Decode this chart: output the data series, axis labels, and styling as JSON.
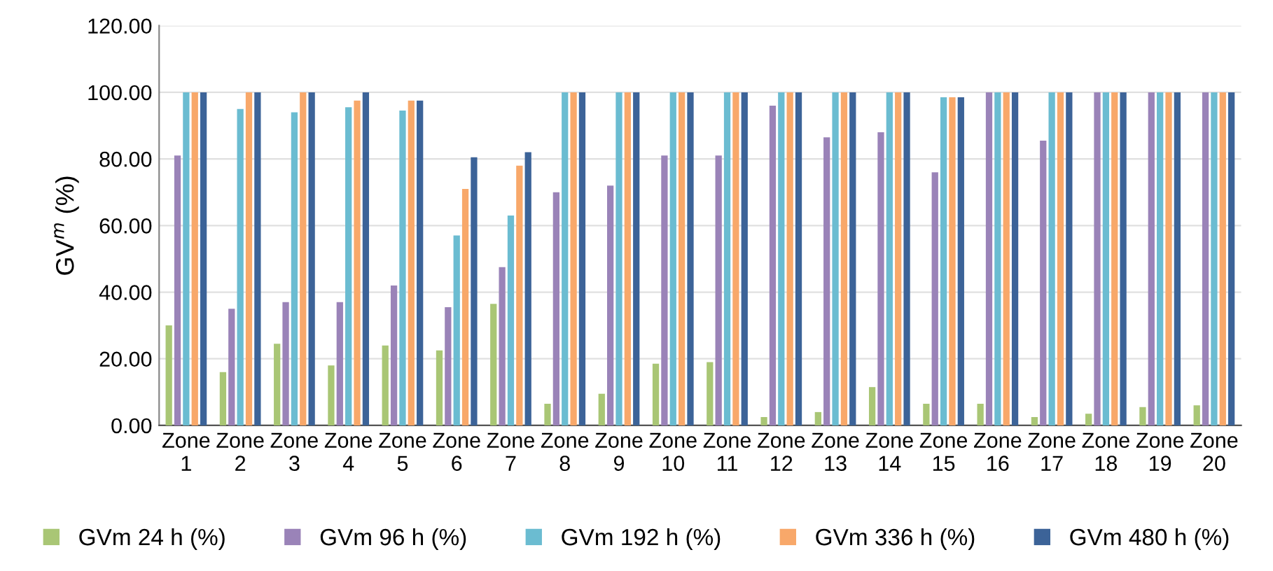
{
  "chart_data": {
    "type": "bar",
    "ylabel": "GV$^{m}$ (%)",
    "categories": [
      "Zone\n1",
      "Zone\n2",
      "Zone\n3",
      "Zone\n4",
      "Zone\n5",
      "Zone\n6",
      "Zone\n7",
      "Zone\n8",
      "Zone\n9",
      "Zone\n10",
      "Zone\n11",
      "Zone\n12",
      "Zone\n13",
      "Zone\n14",
      "Zone\n15",
      "Zone\n16",
      "Zone\n17",
      "Zone\n18",
      "Zone\n19",
      "Zone\n20"
    ],
    "series": [
      {
        "name": "GVm 24 h (%)",
        "color": "#a9c675",
        "values": [
          30,
          16,
          24.5,
          18,
          24,
          22.5,
          36.5,
          6.5,
          9.5,
          18.5,
          19,
          2.5,
          4,
          11.5,
          6.5,
          6.5,
          2.5,
          3.5,
          5.5,
          6
        ]
      },
      {
        "name": "GVm 96 h (%)",
        "color": "#9a83b8",
        "values": [
          81,
          35,
          37,
          37,
          42,
          35.5,
          47.5,
          70,
          72,
          81,
          81,
          96,
          86.5,
          88,
          76,
          100,
          85.5,
          100,
          100,
          100
        ]
      },
      {
        "name": "GVm 192 h (%)",
        "color": "#6bbcd1",
        "values": [
          100,
          95,
          94,
          95.5,
          94.5,
          57,
          63,
          100,
          100,
          100,
          100,
          100,
          100,
          100,
          98.5,
          100,
          100,
          100,
          100,
          100
        ]
      },
      {
        "name": "GVm 336 h (%)",
        "color": "#f8a86a",
        "values": [
          100,
          100,
          100,
          97.5,
          97.5,
          71,
          78,
          100,
          100,
          100,
          100,
          100,
          100,
          100,
          98.5,
          100,
          100,
          100,
          100,
          100
        ]
      },
      {
        "name": "GVm 480 h (%)",
        "color": "#3c6398",
        "values": [
          100,
          100,
          100,
          100,
          97.5,
          80.5,
          82,
          100,
          100,
          100,
          100,
          100,
          100,
          100,
          98.5,
          100,
          100,
          100,
          100,
          100
        ]
      }
    ],
    "ylim": [
      0,
      120
    ],
    "yticks": [
      {
        "value": 0,
        "label": "0.00"
      },
      {
        "value": 20,
        "label": "20.00"
      },
      {
        "value": 40,
        "label": "40.00"
      },
      {
        "value": 60,
        "label": "60.00"
      },
      {
        "value": 80,
        "label": "80.00"
      },
      {
        "value": 100,
        "label": "100.00"
      },
      {
        "value": 120,
        "label": "120.00"
      }
    ],
    "grid": "y",
    "legend": "bottom"
  }
}
